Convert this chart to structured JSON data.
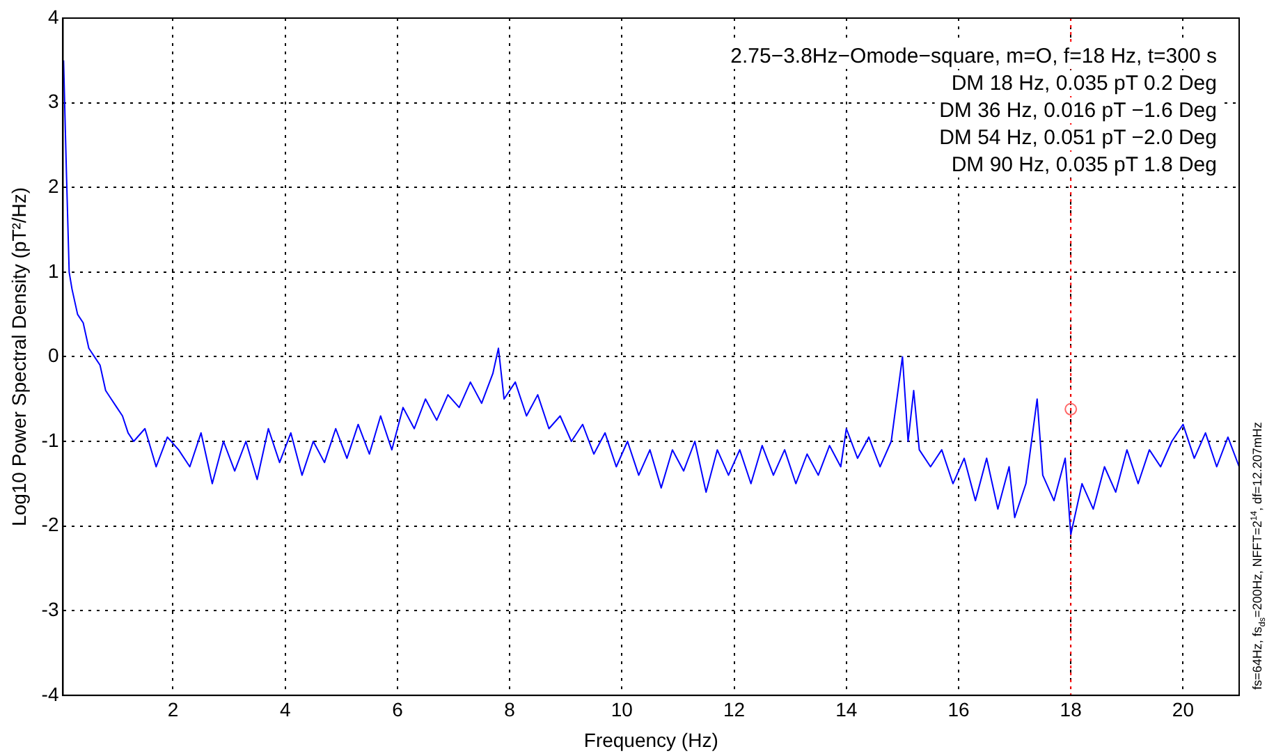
{
  "chart_data": {
    "type": "line",
    "xlabel": "Frequency (Hz)",
    "ylabel": "Log10 Power Spectral Density (pT²/Hz)",
    "xlim": [
      0.04,
      21
    ],
    "xticks": [
      2,
      4,
      6,
      8,
      10,
      12,
      14,
      16,
      18,
      20
    ],
    "ylim": [
      -4,
      4
    ],
    "yticks": [
      -4,
      -3,
      -2,
      -1,
      0,
      1,
      2,
      3,
      4
    ],
    "grid": true,
    "legend": false,
    "line_style": "solid",
    "annotations": [
      "2.75−3.8Hz−Omode−square, m=O, f=18 Hz, t=300 s",
      "DM 18 Hz, 0.035 pT 0.2 Deg",
      "DM 36 Hz, 0.016 pT −1.6 Deg",
      "DM 54 Hz, 0.051 pT −2.0 Deg",
      "DM 90 Hz, 0.035 pT 1.8 Deg",
      "fs=64Hz, fs$_{ds}$=200Hz, NFFT=2$^{14}$, df=12.207mHz"
    ],
    "ref_lines": [
      {
        "axis": "x",
        "value": 18,
        "color": "#ff0000",
        "line_style": "dotted"
      }
    ],
    "series": [
      {
        "color": "#0000ff",
        "marker": "none",
        "x": [
          0.05,
          0.1,
          0.15,
          0.2,
          0.3,
          0.4,
          0.5,
          0.6,
          0.7,
          0.8,
          0.9,
          1.0,
          1.1,
          1.2,
          1.3,
          1.5,
          1.7,
          1.9,
          2.1,
          2.3,
          2.5,
          2.7,
          2.9,
          3.1,
          3.3,
          3.5,
          3.7,
          3.9,
          4.1,
          4.3,
          4.5,
          4.7,
          4.9,
          5.1,
          5.3,
          5.5,
          5.7,
          5.9,
          6.1,
          6.3,
          6.5,
          6.7,
          6.9,
          7.1,
          7.3,
          7.5,
          7.7,
          7.8,
          7.9,
          8.1,
          8.3,
          8.5,
          8.7,
          8.9,
          9.1,
          9.3,
          9.5,
          9.7,
          9.9,
          10.1,
          10.3,
          10.5,
          10.7,
          10.9,
          11.1,
          11.3,
          11.5,
          11.7,
          11.9,
          12.1,
          12.3,
          12.5,
          12.7,
          12.9,
          13.1,
          13.3,
          13.5,
          13.7,
          13.9,
          14.0,
          14.2,
          14.4,
          14.6,
          14.8,
          15.0,
          15.1,
          15.2,
          15.3,
          15.5,
          15.7,
          15.9,
          16.1,
          16.3,
          16.5,
          16.7,
          16.9,
          17.0,
          17.2,
          17.4,
          17.5,
          17.7,
          17.9,
          18.0,
          18.2,
          18.4,
          18.6,
          18.8,
          19.0,
          19.2,
          19.4,
          19.6,
          19.8,
          20.0,
          20.2,
          20.4,
          20.6,
          20.8,
          21.0
        ],
        "values": [
          3.5,
          2.2,
          1.0,
          0.8,
          0.5,
          0.4,
          0.1,
          0.0,
          -0.1,
          -0.4,
          -0.5,
          -0.6,
          -0.7,
          -0.9,
          -1.0,
          -0.85,
          -1.3,
          -0.95,
          -1.1,
          -1.3,
          -0.9,
          -1.5,
          -1.0,
          -1.35,
          -1.0,
          -1.45,
          -0.85,
          -1.25,
          -0.9,
          -1.4,
          -1.0,
          -1.25,
          -0.85,
          -1.2,
          -0.8,
          -1.15,
          -0.7,
          -1.1,
          -0.6,
          -0.85,
          -0.5,
          -0.75,
          -0.45,
          -0.6,
          -0.3,
          -0.55,
          -0.2,
          0.1,
          -0.5,
          -0.3,
          -0.7,
          -0.45,
          -0.85,
          -0.7,
          -1.0,
          -0.8,
          -1.15,
          -0.9,
          -1.3,
          -1.0,
          -1.4,
          -1.1,
          -1.55,
          -1.1,
          -1.35,
          -1.0,
          -1.6,
          -1.1,
          -1.4,
          -1.1,
          -1.5,
          -1.05,
          -1.4,
          -1.1,
          -1.5,
          -1.15,
          -1.4,
          -1.05,
          -1.3,
          -0.85,
          -1.2,
          -0.95,
          -1.3,
          -1.0,
          0.0,
          -1.0,
          -0.4,
          -1.1,
          -1.3,
          -1.1,
          -1.5,
          -1.2,
          -1.7,
          -1.2,
          -1.8,
          -1.3,
          -1.9,
          -1.5,
          -0.5,
          -1.4,
          -1.7,
          -1.2,
          -2.1,
          -1.5,
          -1.8,
          -1.3,
          -1.6,
          -1.1,
          -1.5,
          -1.1,
          -1.3,
          -1.0,
          -0.8,
          -1.2,
          -0.9,
          -1.3,
          -0.95,
          -1.3
        ]
      },
      {
        "type": "scatter",
        "color": "#ff6666",
        "marker": "circle",
        "x": [
          18
        ],
        "values": [
          -0.62
        ]
      }
    ]
  }
}
